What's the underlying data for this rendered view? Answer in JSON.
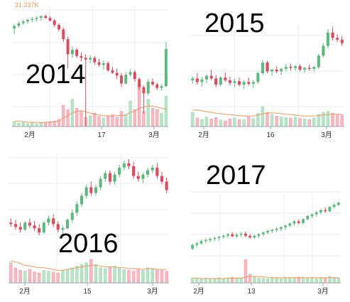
{
  "colors": {
    "up": "#5cb97e",
    "down": "#e0485c",
    "up_vol": "#b7e4c7",
    "down_vol": "#f7b8c3",
    "ma": "#f29a5a",
    "corner": "#f29a5a"
  },
  "chart_data": [
    {
      "type": "candlestick",
      "title": "2014",
      "corner_label": "31.237K",
      "x_ticks": [
        "2月",
        "17",
        "3月"
      ],
      "grid": true,
      "ohlc": [
        [
          27.5,
          28.0,
          26.9,
          27.8
        ],
        [
          27.8,
          28.3,
          27.6,
          28.1
        ],
        [
          28.1,
          28.5,
          27.9,
          28.3
        ],
        [
          28.3,
          28.6,
          28.0,
          28.5
        ],
        [
          28.5,
          28.8,
          28.2,
          28.6
        ],
        [
          28.6,
          28.9,
          28.3,
          28.7
        ],
        [
          28.7,
          29.0,
          28.4,
          28.9
        ],
        [
          28.9,
          29.1,
          28.6,
          28.7
        ],
        [
          28.7,
          28.9,
          28.3,
          28.4
        ],
        [
          28.4,
          28.6,
          27.7,
          27.9
        ],
        [
          27.9,
          28.1,
          27.2,
          27.4
        ],
        [
          27.4,
          27.6,
          26.0,
          26.3
        ],
        [
          26.3,
          26.6,
          23.0,
          24.6
        ],
        [
          24.6,
          25.5,
          24.2,
          25.1
        ],
        [
          25.1,
          25.3,
          24.2,
          24.4
        ],
        [
          24.4,
          24.8,
          23.8,
          24.2
        ],
        [
          24.2,
          24.6,
          -20.0,
          24.0
        ],
        [
          24.0,
          24.5,
          23.6,
          24.2
        ],
        [
          24.2,
          24.4,
          23.4,
          23.7
        ],
        [
          23.7,
          24.1,
          23.2,
          23.4
        ],
        [
          23.4,
          23.9,
          22.9,
          23.6
        ],
        [
          23.6,
          23.8,
          22.6,
          22.8
        ],
        [
          22.8,
          23.2,
          22.4,
          22.5
        ],
        [
          22.5,
          23.0,
          21.8,
          22.2
        ],
        [
          22.2,
          22.5,
          20.9,
          21.3
        ],
        [
          21.3,
          22.6,
          21.2,
          22.3
        ],
        [
          22.3,
          22.9,
          22.1,
          22.6
        ],
        [
          22.6,
          22.8,
          21.5,
          21.8
        ],
        [
          21.8,
          22.0,
          20.6,
          20.9
        ],
        [
          20.9,
          21.1,
          17.9,
          20.2
        ],
        [
          20.2,
          21.8,
          20.0,
          21.5
        ],
        [
          21.5,
          21.9,
          21.0,
          21.2
        ],
        [
          21.2,
          21.4,
          20.6,
          20.8
        ],
        [
          20.8,
          21.2,
          20.5,
          21.0
        ],
        [
          21.0,
          26.0,
          20.9,
          25.2
        ]
      ],
      "volume": [
        8,
        6,
        7,
        5,
        6,
        5,
        7,
        6,
        8,
        9,
        12,
        35,
        28,
        45,
        30,
        25,
        15,
        18,
        22,
        17,
        14,
        18,
        20,
        15,
        25,
        20,
        42,
        28,
        70,
        25,
        45,
        30,
        28,
        22,
        50
      ],
      "ma": [
        8,
        9,
        8,
        7,
        7,
        7,
        6,
        7,
        7,
        8,
        9,
        14,
        18,
        22,
        25,
        26,
        24,
        22,
        20,
        19,
        18,
        17,
        17,
        18,
        18,
        19,
        23,
        25,
        30,
        32,
        34,
        33,
        32,
        30,
        28
      ]
    },
    {
      "type": "candlestick",
      "title": "2015",
      "corner_label": "",
      "x_ticks": [
        "2月",
        "16",
        "3月"
      ],
      "grid": true,
      "ohlc": [
        [
          240,
          244,
          236,
          242
        ],
        [
          242,
          248,
          235,
          238
        ],
        [
          238,
          244,
          233,
          241
        ],
        [
          241,
          247,
          237,
          245
        ],
        [
          245,
          252,
          240,
          242
        ],
        [
          242,
          246,
          232,
          235
        ],
        [
          235,
          245,
          233,
          243
        ],
        [
          243,
          249,
          238,
          240
        ],
        [
          240,
          244,
          234,
          237
        ],
        [
          237,
          242,
          232,
          239
        ],
        [
          239,
          243,
          233,
          235
        ],
        [
          235,
          240,
          230,
          238
        ],
        [
          238,
          243,
          234,
          236
        ],
        [
          236,
          240,
          231,
          238
        ],
        [
          238,
          250,
          236,
          248
        ],
        [
          248,
          263,
          246,
          260
        ],
        [
          260,
          262,
          248,
          250
        ],
        [
          250,
          253,
          245,
          252
        ],
        [
          252,
          256,
          248,
          250
        ],
        [
          250,
          254,
          246,
          253
        ],
        [
          253,
          258,
          250,
          255
        ],
        [
          255,
          259,
          251,
          254
        ],
        [
          254,
          257,
          251,
          256
        ],
        [
          256,
          258,
          250,
          252
        ],
        [
          252,
          255,
          249,
          254
        ],
        [
          254,
          258,
          251,
          253
        ],
        [
          253,
          256,
          250,
          255
        ],
        [
          255,
          270,
          253,
          268
        ],
        [
          268,
          282,
          266,
          279
        ],
        [
          279,
          298,
          276,
          294
        ],
        [
          294,
          300,
          285,
          288
        ],
        [
          288,
          292,
          283,
          286
        ],
        [
          286,
          290,
          279,
          282
        ]
      ],
      "volume": [
        30,
        18,
        15,
        20,
        16,
        19,
        14,
        12,
        16,
        18,
        15,
        14,
        20,
        17,
        28,
        42,
        30,
        26,
        22,
        20,
        19,
        18,
        20,
        17,
        16,
        15,
        18,
        25,
        30,
        32,
        28,
        26,
        24
      ],
      "ma": [
        34,
        35,
        33,
        31,
        30,
        28,
        27,
        26,
        25,
        24,
        23,
        22,
        22,
        22,
        24,
        27,
        28,
        29,
        28,
        27,
        26,
        25,
        24,
        23,
        22,
        22,
        22,
        23,
        24,
        25,
        26,
        26,
        26
      ]
    },
    {
      "type": "candlestick",
      "title": "2016",
      "corner_label": "",
      "x_ticks": [
        "2月",
        "15",
        "3月"
      ],
      "grid": true,
      "ohlc": [
        [
          375,
          378,
          372,
          374
        ],
        [
          374,
          377,
          370,
          372
        ],
        [
          372,
          375,
          368,
          370
        ],
        [
          370,
          376,
          369,
          375
        ],
        [
          375,
          378,
          371,
          373
        ],
        [
          373,
          376,
          369,
          371
        ],
        [
          371,
          374,
          366,
          368
        ],
        [
          368,
          376,
          367,
          375
        ],
        [
          375,
          380,
          373,
          378
        ],
        [
          378,
          381,
          372,
          374
        ],
        [
          374,
          376,
          368,
          370
        ],
        [
          370,
          373,
          366,
          371
        ],
        [
          371,
          378,
          370,
          377
        ],
        [
          377,
          384,
          375,
          382
        ],
        [
          382,
          390,
          380,
          388
        ],
        [
          388,
          396,
          386,
          394
        ],
        [
          394,
          402,
          392,
          400
        ],
        [
          400,
          404,
          394,
          396
        ],
        [
          396,
          402,
          394,
          400
        ],
        [
          400,
          408,
          398,
          406
        ],
        [
          406,
          412,
          404,
          410
        ],
        [
          410,
          412,
          402,
          404
        ],
        [
          404,
          411,
          402,
          409
        ],
        [
          409,
          416,
          407,
          414
        ],
        [
          414,
          419,
          412,
          417
        ],
        [
          417,
          420,
          413,
          415
        ],
        [
          415,
          418,
          406,
          408
        ],
        [
          408,
          411,
          404,
          406
        ],
        [
          406,
          410,
          403,
          409
        ],
        [
          409,
          414,
          407,
          412
        ],
        [
          412,
          416,
          410,
          414
        ],
        [
          414,
          417,
          406,
          408
        ],
        [
          408,
          411,
          402,
          404
        ],
        [
          404,
          407,
          396,
          398
        ]
      ],
      "volume": [
        24,
        18,
        15,
        14,
        16,
        13,
        12,
        15,
        14,
        13,
        12,
        15,
        16,
        18,
        20,
        22,
        24,
        28,
        22,
        18,
        17,
        19,
        20,
        18,
        16,
        15,
        14,
        16,
        15,
        18,
        17,
        16,
        15,
        14
      ],
      "ma": [
        26,
        25,
        23,
        21,
        20,
        19,
        18,
        18,
        17,
        16,
        15,
        15,
        16,
        17,
        18,
        19,
        20,
        21,
        21,
        20,
        19,
        19,
        19,
        18,
        18,
        17,
        17,
        17,
        16,
        17,
        17,
        16,
        16,
        16
      ]
    },
    {
      "type": "candlestick",
      "title": "2017",
      "corner_label": "",
      "x_ticks": [
        "2月",
        "13",
        "3月"
      ],
      "grid": true,
      "ohlc": [
        [
          915,
          925,
          912,
          922
        ],
        [
          922,
          928,
          918,
          925
        ],
        [
          925,
          932,
          922,
          929
        ],
        [
          929,
          934,
          925,
          931
        ],
        [
          931,
          936,
          927,
          933
        ],
        [
          933,
          937,
          929,
          935
        ],
        [
          935,
          939,
          930,
          937
        ],
        [
          937,
          942,
          933,
          939
        ],
        [
          939,
          944,
          935,
          942
        ],
        [
          942,
          946,
          936,
          938
        ],
        [
          938,
          944,
          935,
          941
        ],
        [
          941,
          946,
          937,
          943
        ],
        [
          943,
          947,
          936,
          939
        ],
        [
          939,
          942,
          933,
          936
        ],
        [
          936,
          941,
          933,
          939
        ],
        [
          939,
          944,
          935,
          942
        ],
        [
          942,
          947,
          938,
          945
        ],
        [
          945,
          950,
          941,
          948
        ],
        [
          948,
          952,
          944,
          950
        ],
        [
          950,
          955,
          946,
          952
        ],
        [
          952,
          957,
          948,
          955
        ],
        [
          955,
          960,
          950,
          958
        ],
        [
          958,
          964,
          955,
          962
        ],
        [
          962,
          968,
          958,
          966
        ],
        [
          966,
          970,
          960,
          963
        ],
        [
          963,
          972,
          961,
          970
        ],
        [
          970,
          978,
          968,
          976
        ],
        [
          976,
          981,
          972,
          979
        ],
        [
          979,
          985,
          975,
          983
        ],
        [
          983,
          989,
          979,
          987
        ],
        [
          987,
          992,
          982,
          985
        ],
        [
          985,
          995,
          983,
          993
        ],
        [
          993,
          1000,
          990,
          997
        ],
        [
          997,
          1003,
          994,
          1001
        ]
      ],
      "volume": [
        12,
        10,
        9,
        11,
        10,
        9,
        12,
        10,
        11,
        13,
        12,
        11,
        55,
        20,
        14,
        12,
        11,
        10,
        12,
        11,
        10,
        13,
        12,
        11,
        14,
        13,
        12,
        11,
        10,
        12,
        11,
        15,
        13,
        12
      ],
      "ma": [
        11,
        11,
        10,
        10,
        10,
        10,
        10,
        10,
        11,
        11,
        11,
        11,
        14,
        15,
        15,
        15,
        14,
        13,
        12,
        12,
        12,
        12,
        12,
        12,
        12,
        12,
        12,
        12,
        12,
        12,
        12,
        12,
        12,
        12
      ]
    }
  ]
}
